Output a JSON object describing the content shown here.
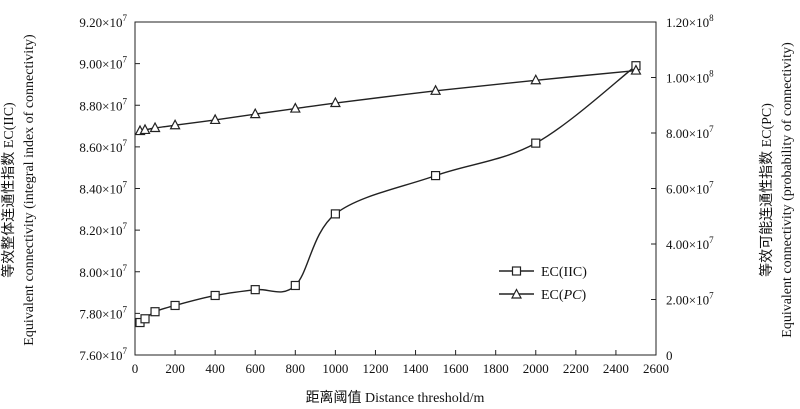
{
  "chart_data": {
    "type": "line",
    "xlabel": "距离阈值 Distance threshold/m",
    "ylabel_left": {
      "line1": "Equivalent connectivity (integral index of connectivity)",
      "line2": "等效整体连通性指数 EC(IIC)"
    },
    "ylabel_right": {
      "line1": "等效可能连通性指数 EC(PC)",
      "line2": "Equivalent connectivity (probability of connectivity)"
    },
    "xlim": [
      0,
      2600
    ],
    "x_ticks": [
      "0",
      "200",
      "400",
      "600",
      "800",
      "1000",
      "1200",
      "1400",
      "1600",
      "1800",
      "2000",
      "2200",
      "2400",
      "2600"
    ],
    "ylim_left": [
      76000000,
      92000000
    ],
    "y_ticks_left": [
      {
        "mantissa": "7.60",
        "exp": "7",
        "value": 76000000
      },
      {
        "mantissa": "7.80",
        "exp": "7",
        "value": 78000000
      },
      {
        "mantissa": "8.00",
        "exp": "7",
        "value": 80000000
      },
      {
        "mantissa": "8.20",
        "exp": "7",
        "value": 82000000
      },
      {
        "mantissa": "8.40",
        "exp": "7",
        "value": 84000000
      },
      {
        "mantissa": "8.60",
        "exp": "7",
        "value": 86000000
      },
      {
        "mantissa": "8.80",
        "exp": "7",
        "value": 88000000
      },
      {
        "mantissa": "9.00",
        "exp": "7",
        "value": 90000000
      },
      {
        "mantissa": "9.20",
        "exp": "7",
        "value": 92000000
      }
    ],
    "ylim_right": [
      0,
      120000000
    ],
    "y_ticks_right": [
      {
        "mantissa": "0",
        "exp": "",
        "value": 0
      },
      {
        "mantissa": "2.00",
        "exp": "7",
        "value": 20000000
      },
      {
        "mantissa": "4.00",
        "exp": "7",
        "value": 40000000
      },
      {
        "mantissa": "6.00",
        "exp": "7",
        "value": 60000000
      },
      {
        "mantissa": "8.00",
        "exp": "7",
        "value": 80000000
      },
      {
        "mantissa": "1.00",
        "exp": "8",
        "value": 100000000
      },
      {
        "mantissa": "1.20",
        "exp": "8",
        "value": 120000000
      }
    ],
    "series": [
      {
        "name": "EC(IIC)",
        "axis": "left",
        "marker": "square",
        "x": [
          25,
          50,
          100,
          200,
          400,
          600,
          800,
          1000,
          1500,
          2000,
          2500
        ],
        "y": [
          77560000,
          77740000,
          78080000,
          78380000,
          78860000,
          79140000,
          79340000,
          82780000,
          84620000,
          86180000,
          89900000
        ]
      },
      {
        "name": "EC(PC)",
        "axis": "right",
        "marker": "triangle",
        "x": [
          25,
          50,
          100,
          200,
          400,
          600,
          800,
          1000,
          1500,
          2000,
          2500
        ],
        "y": [
          80700000,
          81100000,
          81800000,
          82800000,
          84700000,
          86800000,
          88800000,
          90800000,
          95200000,
          99000000,
          102500000
        ]
      }
    ],
    "legend": {
      "position": "center-right",
      "entries": [
        {
          "label": "EC(IIC)",
          "marker": "square"
        },
        {
          "label": "EC(",
          "label_italic": "PC",
          "label_end": ")",
          "marker": "triangle"
        }
      ]
    },
    "grid": false,
    "times_symbol": "×10"
  }
}
